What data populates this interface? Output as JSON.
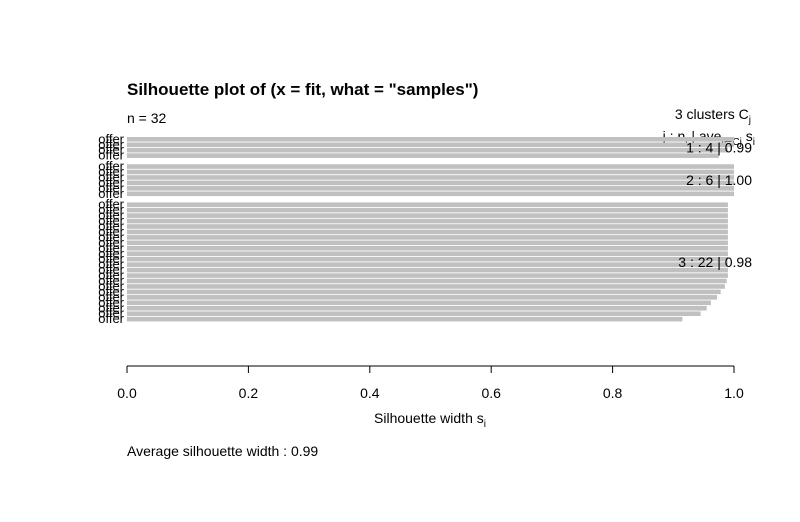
{
  "chart_data": {
    "type": "bar",
    "orientation": "horizontal",
    "title": "Silhouette plot of (x = fit, what = \"samples\")",
    "n_label": "n = 32",
    "clusters_label": "3  clusters  C",
    "clusters_label_sub": "j",
    "column_header": "j :  n",
    "column_header_sub": "j",
    "column_header_mid": " | ave",
    "column_header_sub2": "i∈Cj",
    "column_header_end": "  s",
    "column_header_sub3": "i",
    "xlabel": "Silhouette width s",
    "xlabel_sub": "i",
    "xlim": [
      0,
      1
    ],
    "xticks": [
      "0.0",
      "0.2",
      "0.4",
      "0.6",
      "0.8",
      "1.0"
    ],
    "bar_color": "#c0c0c0",
    "row_label": "offer",
    "footer": "Average silhouette width :  0.99",
    "clusters": [
      {
        "label": "1 :   4  |  0.99",
        "values": [
          1.0,
          1.0,
          0.99,
          0.975
        ]
      },
      {
        "label": "2 :   6  |  1.00",
        "values": [
          1.0,
          1.0,
          1.0,
          1.0,
          1.0,
          1.0
        ]
      },
      {
        "label": "3 :   22  |  0.98",
        "values": [
          0.99,
          0.99,
          0.99,
          0.99,
          0.99,
          0.99,
          0.99,
          0.99,
          0.99,
          0.99,
          0.99,
          0.99,
          0.99,
          0.99,
          0.988,
          0.985,
          0.978,
          0.972,
          0.962,
          0.955,
          0.945,
          0.915
        ]
      }
    ]
  }
}
